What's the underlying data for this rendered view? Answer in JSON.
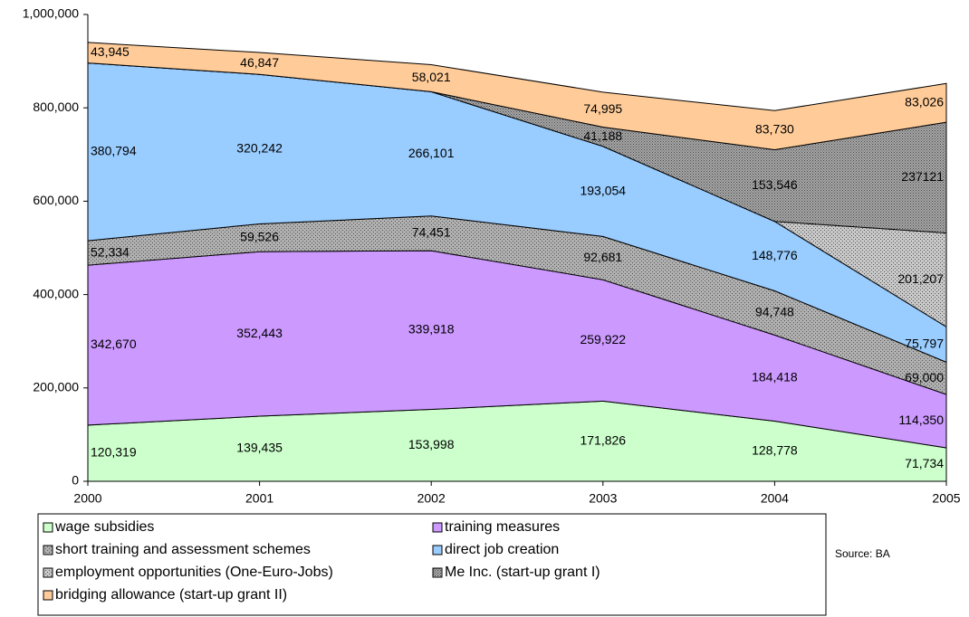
{
  "chart_data": {
    "type": "stacked-area",
    "x": [
      2000,
      2001,
      2002,
      2003,
      2004,
      2005
    ],
    "xlim": [
      2000,
      2005
    ],
    "xticks": [
      2000,
      2001,
      2002,
      2003,
      2004,
      2005
    ],
    "ylim": [
      0,
      1000000
    ],
    "yticks": [
      0,
      {
        "value": 200000,
        "label": "200,000"
      },
      {
        "value": 400000,
        "label": "400,000"
      },
      {
        "value": 600000,
        "label": "600,000"
      },
      {
        "value": 800000,
        "label": "800,000"
      },
      {
        "value": 1000000,
        "label": "1,000,000"
      }
    ],
    "series": [
      {
        "name": "wage subsidies",
        "color": "#ccffcc",
        "values": [
          120319,
          139435,
          153998,
          171826,
          128778,
          71734
        ],
        "value_labels": [
          "120,319",
          "139,435",
          "153,998",
          "171,826",
          "128,778",
          "71,734"
        ]
      },
      {
        "name": "training measures",
        "color": "#cc99ff",
        "values": [
          342670,
          352443,
          339918,
          259922,
          184418,
          114350
        ],
        "value_labels": [
          "342,670",
          "352,443",
          "339,918",
          "259,922",
          "184,418",
          "114,350"
        ]
      },
      {
        "name": "short training and assessment schemes",
        "color": "#b0b0b0",
        "pattern": "dots",
        "values": [
          52334,
          59526,
          74451,
          92681,
          94748,
          69000
        ],
        "value_labels": [
          "52,334",
          "59,526",
          "74,451",
          "92,681",
          "94,748",
          "69,000"
        ]
      },
      {
        "name": "direct job creation",
        "color": "#99ccff",
        "values": [
          380794,
          320242,
          266101,
          193054,
          148776,
          75797
        ],
        "value_labels": [
          "380,794",
          "320,242",
          "266,101",
          "193,054",
          "148,776",
          "75,797"
        ]
      },
      {
        "name": "employment opportunities (One-Euro-Jobs)",
        "color": "#c8c8c8",
        "pattern": "dots",
        "values": [
          0,
          0,
          0,
          0,
          0,
          201207
        ],
        "value_labels": [
          null,
          null,
          null,
          null,
          null,
          "201,207"
        ]
      },
      {
        "name": "Me Inc. (start-up grant I)",
        "color": "#a8a8a8",
        "pattern": "darkdots",
        "values": [
          0,
          0,
          0,
          41188,
          153546,
          237121
        ],
        "value_labels": [
          null,
          null,
          null,
          "41,188",
          "153,546",
          "237121"
        ]
      },
      {
        "name": "bridging allowance (start-up grant II)",
        "color": "#ffcc99",
        "values": [
          43945,
          46847,
          58021,
          74995,
          83730,
          83026
        ],
        "value_labels": [
          "43,945",
          "46,847",
          "58,021",
          "74,995",
          "83,730",
          "83,026"
        ]
      }
    ],
    "source": "Source: BA"
  }
}
